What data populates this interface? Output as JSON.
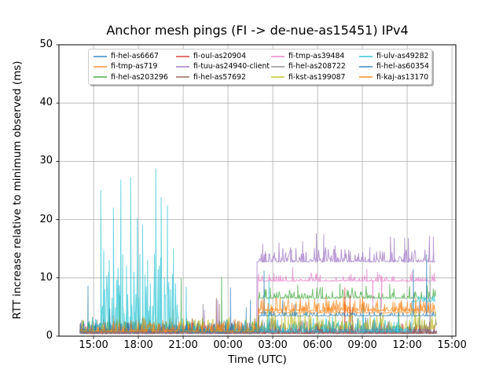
{
  "chart_data": {
    "type": "line",
    "title": "Anchor mesh pings (FI -> de-nue-as15451) IPv4",
    "xlabel": "Time (UTC)",
    "ylabel": "RTT increase relative to minimum observed (ms)",
    "ylim": [
      0,
      50
    ],
    "x_domain": [
      12.68,
      39.26
    ],
    "x_tick_vals": [
      15,
      18,
      21,
      24,
      27,
      30,
      33,
      36,
      39
    ],
    "x_ticks": [
      "15:00",
      "18:00",
      "21:00",
      "00:00",
      "03:00",
      "06:00",
      "09:00",
      "12:00",
      "15:00"
    ],
    "y_ticks": [
      0,
      10,
      20,
      30,
      40,
      50
    ],
    "grid": true,
    "grid_color": "#b0b0b0",
    "axis_color": "#000000",
    "line_opacity": 0.65,
    "legend_position": "upper center, 4 columns",
    "time_note": "x values are hours since 00:00 of day 1; data runs ~14:05 to ~14:00 next day; step change at ~02:00",
    "series": [
      {
        "name": "fi-hel-as6667",
        "color": "#1f77b4",
        "segments": [
          {
            "t0": 14.08,
            "t1": 38.0,
            "base": 0.4,
            "amp": 0.7
          }
        ],
        "spikes": [
          [
            14.63,
            8.6
          ],
          [
            22.3,
            3.0
          ],
          [
            24.17,
            8.3
          ],
          [
            25.22,
            4.9
          ],
          [
            25.5,
            6.2
          ],
          [
            27.0,
            3.0
          ],
          [
            29.5,
            2.8
          ],
          [
            33.2,
            3.2
          ],
          [
            36.83,
            6.0
          ]
        ]
      },
      {
        "name": "fi-tmp-as719",
        "color": "#ff7f0e",
        "segments": [
          {
            "t0": 14.08,
            "t1": 26.05,
            "base": 0.5,
            "amp": 0.8
          },
          {
            "t0": 26.05,
            "t1": 37.92,
            "base": 3.9,
            "amp": 0.7
          }
        ],
        "spikes": [
          [
            16.35,
            3.5
          ],
          [
            20.33,
            4.6
          ],
          [
            24.67,
            2.6
          ],
          [
            28.8,
            5.6
          ],
          [
            30.67,
            6.0
          ],
          [
            34.5,
            5.5
          ]
        ]
      },
      {
        "name": "fi-hel-as203296",
        "color": "#2ca02c",
        "segments": [
          {
            "t0": 14.08,
            "t1": 26.03,
            "base": 0.5,
            "amp": 0.7
          },
          {
            "t0": 26.03,
            "t1": 37.92,
            "base": 6.45,
            "amp": 0.6
          }
        ],
        "spikes": [
          [
            16.75,
            7.0
          ],
          [
            20.87,
            9.9
          ],
          [
            23.57,
            10.1
          ],
          [
            26.83,
            8.3
          ],
          [
            28.67,
            8.8
          ],
          [
            30.33,
            8.4
          ],
          [
            31.5,
            9.0
          ],
          [
            33.25,
            8.6
          ],
          [
            34.83,
            8.9
          ],
          [
            36.17,
            8.5
          ],
          [
            37.33,
            8.7
          ]
        ]
      },
      {
        "name": "fi-oul-as20904",
        "color": "#d62728",
        "segments": [
          {
            "t0": 14.08,
            "t1": 38.0,
            "base": 0.4,
            "amp": 0.6
          }
        ],
        "spikes": [
          [
            24.5,
            2.0
          ],
          [
            31.83,
            8.3
          ],
          [
            32.17,
            7.0
          ],
          [
            37.5,
            2.5
          ]
        ]
      },
      {
        "name": "fi-tuu-as24940-client",
        "color": "#9467bd",
        "segments": [
          {
            "t0": 14.08,
            "t1": 25.95,
            "base": 0.5,
            "amp": 0.6
          },
          {
            "t0": 25.95,
            "t1": 37.92,
            "base": 12.7,
            "amp": 0.8
          }
        ],
        "spikes": [
          [
            22.42,
            4.5
          ],
          [
            23.3,
            6.2
          ],
          [
            26.33,
            15.8
          ],
          [
            26.5,
            14.5
          ],
          [
            27.42,
            16.0
          ],
          [
            28.25,
            14.8
          ],
          [
            29.0,
            16.2
          ],
          [
            29.92,
            17.6
          ],
          [
            30.42,
            17.5
          ],
          [
            31.17,
            15.5
          ],
          [
            32.08,
            14.8
          ],
          [
            33.5,
            15.2
          ],
          [
            34.88,
            17.0
          ],
          [
            35.13,
            16.8
          ],
          [
            35.83,
            16.8
          ],
          [
            36.08,
            16.8
          ],
          [
            37.5,
            17.2
          ],
          [
            37.75,
            17.0
          ]
        ]
      },
      {
        "name": "fi-hel-as57692",
        "color": "#8c564b",
        "segments": [
          {
            "t0": 14.08,
            "t1": 38.0,
            "base": 0.4,
            "amp": 0.6
          }
        ],
        "spikes": [
          [
            21.6,
            3.0
          ],
          [
            23.22,
            6.5
          ],
          [
            23.42,
            5.5
          ],
          [
            29.3,
            2.5
          ],
          [
            32.33,
            5.0
          ]
        ]
      },
      {
        "name": "fi-tmp-as39484",
        "color": "#e377c2",
        "segments": [
          {
            "t0": 14.08,
            "t1": 26.0,
            "base": 0.5,
            "amp": 0.6
          },
          {
            "t0": 26.0,
            "t1": 37.92,
            "base": 9.4,
            "amp": 0.45
          }
        ],
        "spikes": [
          [
            27.08,
            10.8
          ],
          [
            28.33,
            11.8
          ],
          [
            30.17,
            10.5
          ],
          [
            33.3,
            11.5
          ],
          [
            33.7,
            4.9
          ],
          [
            34.0,
            11.0
          ],
          [
            34.28,
            4.7
          ],
          [
            36.33,
            11.2
          ],
          [
            37.83,
            10.8
          ]
        ]
      },
      {
        "name": "fi-hel-as208722",
        "color": "#7f7f7f",
        "segments": [
          {
            "t0": 14.08,
            "t1": 38.0,
            "base": 0.6,
            "amp": 0.8
          }
        ],
        "spikes": [
          [
            22.33,
            5.5
          ],
          [
            34.2,
            6.7
          ],
          [
            37.53,
            12.3
          ]
        ]
      },
      {
        "name": "fi-kst-as199087",
        "color": "#bcbd22",
        "segments": [
          {
            "t0": 14.08,
            "t1": 26.0,
            "base": 0.7,
            "amp": 0.9
          },
          {
            "t0": 26.0,
            "t1": 37.92,
            "base": 1.2,
            "amp": 1.1
          }
        ],
        "spikes": [
          [
            27.83,
            3.2
          ],
          [
            29.5,
            3.6
          ],
          [
            31.67,
            3.4
          ],
          [
            33.33,
            2.8
          ],
          [
            36.58,
            3.8
          ],
          [
            37.67,
            3.5
          ]
        ]
      },
      {
        "name": "fi-ulv-as49282",
        "color": "#17becf",
        "segments": [
          {
            "t0": 14.08,
            "t1": 15.2,
            "base": 0.7,
            "amp": 0.8
          },
          {
            "t0": 15.2,
            "t1": 20.7,
            "base": 1.2,
            "amp": 4.5
          },
          {
            "t0": 20.7,
            "t1": 26.0,
            "base": 0.6,
            "amp": 0.8
          },
          {
            "t0": 26.0,
            "t1": 36.33,
            "base": 0.6,
            "amp": 0.9
          },
          {
            "t0": 36.33,
            "t1": 37.92,
            "base": 5.9,
            "amp": 0.35
          }
        ],
        "spikes": [
          [
            15.48,
            25.0
          ],
          [
            15.75,
            8.0
          ],
          [
            16.05,
            13.0
          ],
          [
            16.33,
            22.0
          ],
          [
            16.55,
            9.5
          ],
          [
            16.83,
            26.8
          ],
          [
            16.95,
            14.0
          ],
          [
            17.2,
            12.0
          ],
          [
            17.48,
            27.2
          ],
          [
            17.7,
            11.0
          ],
          [
            17.93,
            20.2
          ],
          [
            18.1,
            14.0
          ],
          [
            18.28,
            19.1
          ],
          [
            18.45,
            10.5
          ],
          [
            18.62,
            13.0
          ],
          [
            18.8,
            9.0
          ],
          [
            19.17,
            28.7
          ],
          [
            19.4,
            12.0
          ],
          [
            19.52,
            23.8
          ],
          [
            19.75,
            10.0
          ],
          [
            19.95,
            22.4
          ],
          [
            20.15,
            8.0
          ],
          [
            20.35,
            15.0
          ],
          [
            20.5,
            6.5
          ],
          [
            21.2,
            8.4
          ],
          [
            26.75,
            9.5
          ],
          [
            33.05,
            5.4
          ],
          [
            35.4,
            4.0
          ]
        ]
      },
      {
        "name": "fi-hel-as60354",
        "color": "#1f77b4",
        "segments": [
          {
            "t0": 14.08,
            "t1": 26.08,
            "base": 0.5,
            "amp": 0.6
          },
          {
            "t0": 26.08,
            "t1": 37.92,
            "base": 3.45,
            "amp": 0.25
          }
        ],
        "spikes": [
          [
            16.08,
            4.7
          ],
          [
            26.42,
            11.2
          ],
          [
            27.67,
            6.2
          ],
          [
            28.5,
            5.5
          ],
          [
            36.42,
            11.5
          ],
          [
            37.3,
            14.0
          ]
        ]
      },
      {
        "name": "fi-kaj-as13170",
        "color": "#ff7f0e",
        "segments": [
          {
            "t0": 14.08,
            "t1": 26.05,
            "base": 0.6,
            "amp": 0.7
          },
          {
            "t0": 26.05,
            "t1": 37.92,
            "base": 4.3,
            "amp": 0.8
          }
        ],
        "spikes": [
          [
            18.3,
            3.0
          ],
          [
            28.83,
            6.0
          ],
          [
            32.5,
            6.2
          ],
          [
            35.17,
            5.8
          ]
        ]
      }
    ]
  }
}
